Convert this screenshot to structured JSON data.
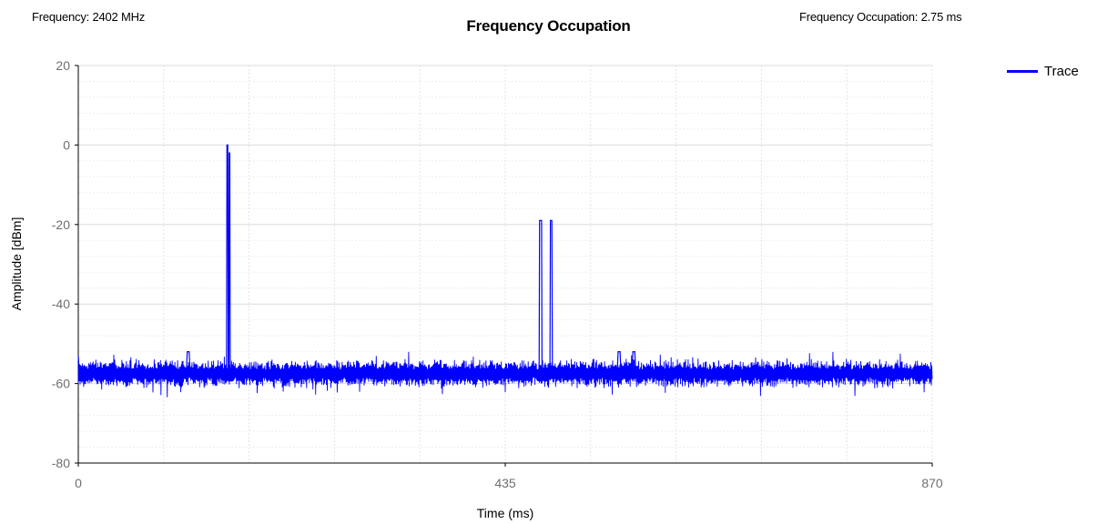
{
  "header": {
    "frequency_label": "Frequency: 2402 MHz",
    "occupation_label": "Frequency Occupation: 2.75 ms"
  },
  "chart_data": {
    "type": "line",
    "title": "Frequency Occupation",
    "xlabel": "Time (ms)",
    "ylabel": "Amplitude [dBm]",
    "xlim": [
      0,
      870
    ],
    "ylim": [
      -80,
      20
    ],
    "x_ticks": [
      "0",
      "435",
      "870"
    ],
    "y_ticks": [
      "20",
      "0",
      "-20",
      "-40",
      "-60",
      "-80"
    ],
    "grid": true,
    "legend_position": "top-right",
    "series": [
      {
        "name": "Trace",
        "color": "#0000ff",
        "noise_floor": -57.5,
        "points": [
          [
            0,
            -53
          ],
          [
            1,
            -57.5
          ],
          [
            110,
            -57.5
          ],
          [
            111,
            -52
          ],
          [
            113,
            -52
          ],
          [
            114,
            -57.5
          ],
          [
            151,
            -57.5
          ],
          [
            151.5,
            0
          ],
          [
            152.3,
            0
          ],
          [
            152.8,
            -57.5
          ],
          [
            153.3,
            -57.5
          ],
          [
            153.8,
            -2
          ],
          [
            154.3,
            -2
          ],
          [
            154.8,
            -57.5
          ],
          [
            469.5,
            -57.5
          ],
          [
            470,
            -19
          ],
          [
            472,
            -19
          ],
          [
            472.5,
            -57.5
          ],
          [
            478.5,
            -57.5
          ],
          [
            479,
            -61
          ],
          [
            479.5,
            -57.5
          ],
          [
            480.5,
            -57.5
          ],
          [
            481,
            -19
          ],
          [
            482.5,
            -19
          ],
          [
            483,
            -57.5
          ],
          [
            549,
            -57.5
          ],
          [
            550,
            -52
          ],
          [
            552,
            -52
          ],
          [
            553,
            -57.5
          ],
          [
            564,
            -57.5
          ],
          [
            565,
            -52
          ],
          [
            567,
            -52
          ],
          [
            568,
            -57.5
          ],
          [
            870,
            -57.5
          ]
        ]
      }
    ]
  },
  "legend": {
    "items": [
      {
        "label": "Trace",
        "color": "#0000ff"
      }
    ]
  }
}
